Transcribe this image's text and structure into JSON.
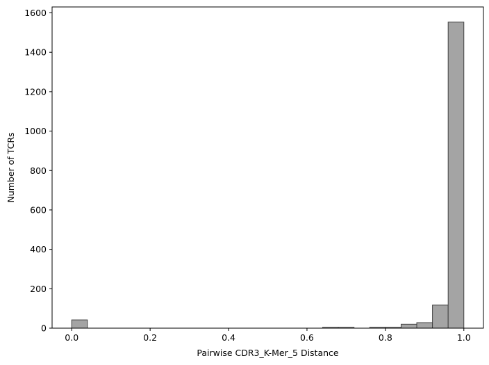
{
  "chart_data": {
    "type": "bar",
    "xlabel": "Pairwise CDR3_K-Mer_5 Distance",
    "ylabel": "Number of TCRs",
    "xlim": [
      -0.05,
      1.05
    ],
    "ylim": [
      0,
      1630
    ],
    "xticks": [
      0.0,
      0.2,
      0.4,
      0.6,
      0.8,
      1.0
    ],
    "xtick_labels": [
      "0.0",
      "0.2",
      "0.4",
      "0.6",
      "0.8",
      "1.0"
    ],
    "yticks": [
      0,
      200,
      400,
      600,
      800,
      1000,
      1200,
      1400,
      1600
    ],
    "ytick_labels": [
      "0",
      "200",
      "400",
      "600",
      "800",
      "1000",
      "1200",
      "1400",
      "1600"
    ],
    "bar_color": "#a4a4a4",
    "edge_color": "#404040",
    "bins": [
      {
        "x0": 0.0,
        "x1": 0.04,
        "count": 42
      },
      {
        "x0": 0.04,
        "x1": 0.08,
        "count": 0
      },
      {
        "x0": 0.08,
        "x1": 0.12,
        "count": 0
      },
      {
        "x0": 0.12,
        "x1": 0.16,
        "count": 0
      },
      {
        "x0": 0.16,
        "x1": 0.2,
        "count": 0
      },
      {
        "x0": 0.2,
        "x1": 0.24,
        "count": 0
      },
      {
        "x0": 0.24,
        "x1": 0.28,
        "count": 0
      },
      {
        "x0": 0.28,
        "x1": 0.32,
        "count": 0
      },
      {
        "x0": 0.32,
        "x1": 0.36,
        "count": 0
      },
      {
        "x0": 0.36,
        "x1": 0.4,
        "count": 0
      },
      {
        "x0": 0.4,
        "x1": 0.44,
        "count": 0
      },
      {
        "x0": 0.44,
        "x1": 0.48,
        "count": 0
      },
      {
        "x0": 0.48,
        "x1": 0.52,
        "count": 0
      },
      {
        "x0": 0.52,
        "x1": 0.56,
        "count": 0
      },
      {
        "x0": 0.56,
        "x1": 0.6,
        "count": 0
      },
      {
        "x0": 0.6,
        "x1": 0.64,
        "count": 0
      },
      {
        "x0": 0.64,
        "x1": 0.68,
        "count": 2
      },
      {
        "x0": 0.68,
        "x1": 0.72,
        "count": 2
      },
      {
        "x0": 0.72,
        "x1": 0.76,
        "count": 0
      },
      {
        "x0": 0.76,
        "x1": 0.8,
        "count": 3
      },
      {
        "x0": 0.8,
        "x1": 0.84,
        "count": 4
      },
      {
        "x0": 0.84,
        "x1": 0.88,
        "count": 20
      },
      {
        "x0": 0.88,
        "x1": 0.92,
        "count": 28
      },
      {
        "x0": 0.92,
        "x1": 0.96,
        "count": 117
      },
      {
        "x0": 0.96,
        "x1": 1.0,
        "count": 1553
      }
    ]
  }
}
